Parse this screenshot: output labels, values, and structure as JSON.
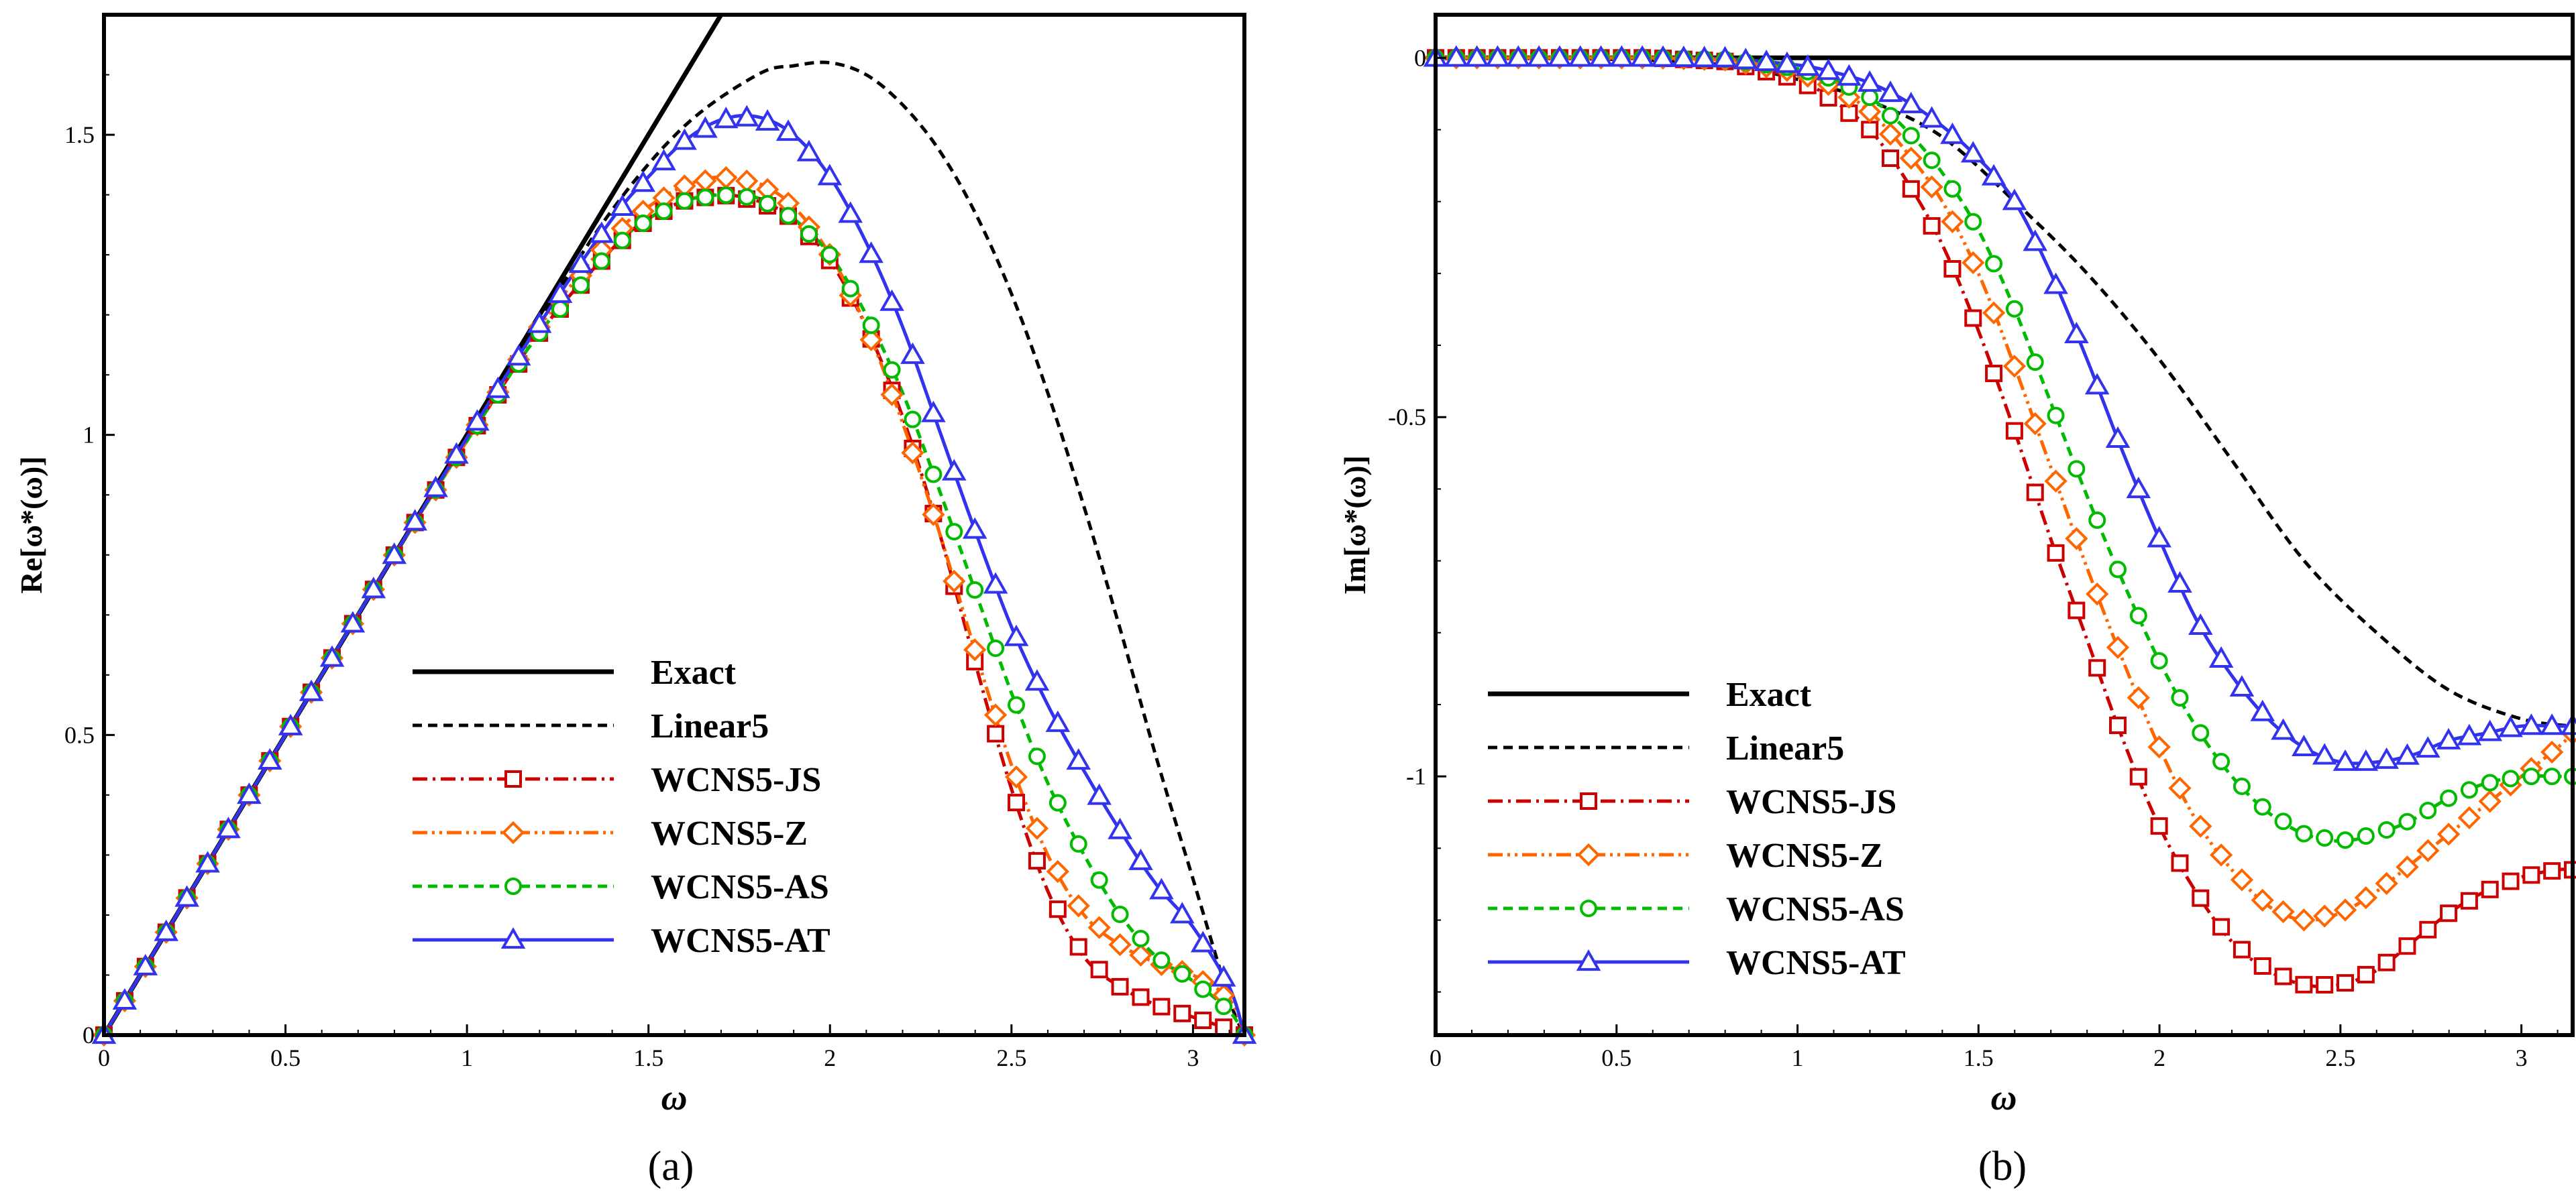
{
  "figure": {
    "panel_a_label": "(a)",
    "panel_b_label": "(b)"
  },
  "chart_data": [
    {
      "id": "a",
      "type": "line",
      "title": "",
      "xlabel": "ω",
      "ylabel": "Re[ω*(ω)]",
      "xlim": [
        0,
        3.14159
      ],
      "ylim": [
        0,
        1.7
      ],
      "xticks": [
        0,
        0.5,
        1,
        1.5,
        2,
        2.5,
        3
      ],
      "xtick_labels": [
        "0",
        "0.5",
        "1",
        "1.5",
        "2",
        "2.5",
        "3"
      ],
      "yticks": [
        0,
        0.5,
        1,
        1.5
      ],
      "ytick_labels": [
        "0",
        "0.5",
        "1",
        "1.5"
      ],
      "legend_position": "bottom-center",
      "series": [
        {
          "name": "Exact",
          "color": "#000000",
          "style": "solid",
          "marker": "none",
          "x": [
            0,
            1.7
          ],
          "y": [
            0,
            1.7
          ]
        },
        {
          "name": "Linear5",
          "color": "#000000",
          "style": "dashed",
          "marker": "none",
          "x": [
            0,
            0.25,
            0.5,
            0.75,
            1.0,
            1.2,
            1.4,
            1.6,
            1.8,
            1.9,
            2.0,
            2.1,
            2.2,
            2.3,
            2.4,
            2.5,
            2.6,
            2.7,
            2.8,
            2.9,
            3.0,
            3.1,
            3.1416
          ],
          "y": [
            0,
            0.25,
            0.5,
            0.75,
            0.995,
            1.19,
            1.375,
            1.515,
            1.6,
            1.615,
            1.62,
            1.6,
            1.55,
            1.475,
            1.37,
            1.235,
            1.07,
            0.88,
            0.675,
            0.46,
            0.26,
            0.06,
            0
          ]
        },
        {
          "name": "WCNS5-JS",
          "color": "#cc0000",
          "style": "dashdot",
          "marker": "square",
          "x": [
            0,
            0.2,
            0.4,
            0.6,
            0.8,
            1.0,
            1.2,
            1.4,
            1.5,
            1.6,
            1.7,
            1.8,
            1.9,
            2.0,
            2.1,
            2.2,
            2.3,
            2.4,
            2.5,
            2.6,
            2.7,
            2.8,
            2.9,
            3.0,
            3.1,
            3.1416
          ],
          "y": [
            0,
            0.2,
            0.4,
            0.6,
            0.8,
            0.99,
            1.17,
            1.31,
            1.36,
            1.39,
            1.4,
            1.39,
            1.36,
            1.29,
            1.18,
            1.03,
            0.84,
            0.62,
            0.41,
            0.24,
            0.13,
            0.08,
            0.05,
            0.03,
            0.01,
            0
          ]
        },
        {
          "name": "WCNS5-Z",
          "color": "#ff6600",
          "style": "dashdotdot",
          "marker": "diamond",
          "x": [
            0,
            0.2,
            0.4,
            0.6,
            0.8,
            1.0,
            1.2,
            1.4,
            1.5,
            1.6,
            1.7,
            1.8,
            1.9,
            2.0,
            2.1,
            2.2,
            2.3,
            2.4,
            2.5,
            2.6,
            2.7,
            2.8,
            2.9,
            3.0,
            3.1,
            3.1416
          ],
          "y": [
            0,
            0.2,
            0.4,
            0.6,
            0.8,
            0.99,
            1.18,
            1.33,
            1.38,
            1.415,
            1.43,
            1.42,
            1.38,
            1.3,
            1.18,
            1.02,
            0.84,
            0.64,
            0.45,
            0.3,
            0.2,
            0.15,
            0.12,
            0.1,
            0.06,
            0
          ]
        },
        {
          "name": "WCNS5-AS",
          "color": "#00bb00",
          "style": "dashed",
          "marker": "circle",
          "x": [
            0,
            0.2,
            0.4,
            0.6,
            0.8,
            1.0,
            1.2,
            1.4,
            1.5,
            1.6,
            1.7,
            1.8,
            1.9,
            2.0,
            2.1,
            2.2,
            2.3,
            2.4,
            2.5,
            2.6,
            2.7,
            2.8,
            2.9,
            3.0,
            3.1,
            3.1416
          ],
          "y": [
            0,
            0.2,
            0.4,
            0.6,
            0.8,
            0.99,
            1.17,
            1.31,
            1.36,
            1.39,
            1.4,
            1.395,
            1.36,
            1.3,
            1.2,
            1.07,
            0.91,
            0.74,
            0.57,
            0.42,
            0.3,
            0.2,
            0.13,
            0.09,
            0.04,
            0
          ]
        },
        {
          "name": "WCNS5-AT",
          "color": "#3333ee",
          "style": "solid",
          "marker": "triangle",
          "x": [
            0,
            0.2,
            0.4,
            0.6,
            0.8,
            1.0,
            1.2,
            1.4,
            1.5,
            1.6,
            1.7,
            1.8,
            1.9,
            2.0,
            2.1,
            2.2,
            2.3,
            2.4,
            2.5,
            2.6,
            2.7,
            2.8,
            2.9,
            3.0,
            3.1,
            3.1416
          ],
          "y": [
            0,
            0.2,
            0.4,
            0.6,
            0.8,
            0.995,
            1.185,
            1.36,
            1.43,
            1.49,
            1.525,
            1.53,
            1.5,
            1.43,
            1.32,
            1.18,
            1.01,
            0.84,
            0.68,
            0.55,
            0.44,
            0.34,
            0.25,
            0.18,
            0.08,
            0
          ]
        }
      ]
    },
    {
      "id": "b",
      "type": "line",
      "title": "",
      "xlabel": "ω",
      "ylabel": "Im[ω*(ω)]",
      "xlim": [
        0,
        3.14159
      ],
      "ylim": [
        -1.36,
        0.06
      ],
      "xticks": [
        0,
        0.5,
        1,
        1.5,
        2,
        2.5,
        3
      ],
      "xtick_labels": [
        "0",
        "0.5",
        "1",
        "1.5",
        "2",
        "2.5",
        "3"
      ],
      "yticks": [
        0,
        -0.5,
        -1
      ],
      "ytick_labels": [
        "0",
        "-0.5",
        "-1"
      ],
      "legend_position": "bottom-left",
      "series": [
        {
          "name": "Exact",
          "color": "#000000",
          "style": "solid",
          "marker": "none",
          "x": [
            0,
            3.1416
          ],
          "y": [
            0,
            0
          ]
        },
        {
          "name": "Linear5",
          "color": "#000000",
          "style": "dashed",
          "marker": "none",
          "x": [
            0,
            0.5,
            0.8,
            1.0,
            1.2,
            1.4,
            1.6,
            1.8,
            2.0,
            2.2,
            2.4,
            2.6,
            2.8,
            3.0,
            3.1416
          ],
          "y": [
            0,
            -0.002,
            -0.01,
            -0.03,
            -0.06,
            -0.11,
            -0.2,
            -0.3,
            -0.42,
            -0.56,
            -0.7,
            -0.8,
            -0.88,
            -0.92,
            -0.93
          ]
        },
        {
          "name": "WCNS5-JS",
          "color": "#cc0000",
          "style": "dashdot",
          "marker": "square",
          "x": [
            0,
            0.2,
            0.4,
            0.6,
            0.8,
            1.0,
            1.1,
            1.2,
            1.3,
            1.4,
            1.5,
            1.6,
            1.7,
            1.8,
            1.9,
            2.0,
            2.1,
            2.2,
            2.3,
            2.4,
            2.5,
            2.6,
            2.7,
            2.8,
            2.9,
            3.0,
            3.1,
            3.1416
          ],
          "y": [
            0,
            0,
            0,
            0,
            -0.005,
            -0.03,
            -0.06,
            -0.1,
            -0.17,
            -0.26,
            -0.38,
            -0.52,
            -0.67,
            -0.81,
            -0.95,
            -1.07,
            -1.16,
            -1.23,
            -1.27,
            -1.29,
            -1.29,
            -1.27,
            -1.23,
            -1.19,
            -1.16,
            -1.14,
            -1.13,
            -1.13
          ]
        },
        {
          "name": "WCNS5-Z",
          "color": "#ff6600",
          "style": "dashdotdot",
          "marker": "diamond",
          "x": [
            0,
            0.2,
            0.4,
            0.6,
            0.8,
            1.0,
            1.1,
            1.2,
            1.3,
            1.4,
            1.5,
            1.6,
            1.7,
            1.8,
            1.9,
            2.0,
            2.1,
            2.2,
            2.3,
            2.4,
            2.5,
            2.6,
            2.7,
            2.8,
            2.9,
            3.0,
            3.1,
            3.1416
          ],
          "y": [
            0,
            0,
            0,
            0,
            -0.003,
            -0.02,
            -0.04,
            -0.075,
            -0.13,
            -0.2,
            -0.3,
            -0.43,
            -0.57,
            -0.71,
            -0.84,
            -0.96,
            -1.06,
            -1.13,
            -1.18,
            -1.2,
            -1.19,
            -1.16,
            -1.12,
            -1.08,
            -1.04,
            -1.0,
            -0.96,
            -0.94
          ]
        },
        {
          "name": "WCNS5-AS",
          "color": "#00bb00",
          "style": "dashed",
          "marker": "circle",
          "x": [
            0,
            0.2,
            0.4,
            0.6,
            0.8,
            1.0,
            1.1,
            1.2,
            1.3,
            1.4,
            1.5,
            1.6,
            1.7,
            1.8,
            1.9,
            2.0,
            2.1,
            2.2,
            2.3,
            2.4,
            2.5,
            2.6,
            2.7,
            2.8,
            2.9,
            3.0,
            3.1,
            3.1416
          ],
          "y": [
            0,
            0,
            0,
            0,
            -0.002,
            -0.015,
            -0.03,
            -0.055,
            -0.1,
            -0.16,
            -0.24,
            -0.35,
            -0.48,
            -0.61,
            -0.73,
            -0.84,
            -0.93,
            -1.0,
            -1.05,
            -1.08,
            -1.09,
            -1.08,
            -1.06,
            -1.03,
            -1.01,
            -1.0,
            -1.0,
            -1.0
          ]
        },
        {
          "name": "WCNS5-AT",
          "color": "#3333ee",
          "style": "solid",
          "marker": "triangle",
          "x": [
            0,
            0.2,
            0.4,
            0.6,
            0.8,
            1.0,
            1.1,
            1.2,
            1.3,
            1.4,
            1.5,
            1.6,
            1.7,
            1.8,
            1.9,
            2.0,
            2.1,
            2.2,
            2.3,
            2.4,
            2.5,
            2.6,
            2.7,
            2.8,
            2.9,
            3.0,
            3.1,
            3.1416
          ],
          "y": [
            0,
            0,
            0,
            0,
            -0.001,
            -0.01,
            -0.02,
            -0.035,
            -0.06,
            -0.095,
            -0.14,
            -0.2,
            -0.3,
            -0.42,
            -0.55,
            -0.67,
            -0.78,
            -0.86,
            -0.92,
            -0.96,
            -0.98,
            -0.98,
            -0.97,
            -0.95,
            -0.94,
            -0.93,
            -0.93,
            -0.93
          ]
        }
      ]
    }
  ]
}
